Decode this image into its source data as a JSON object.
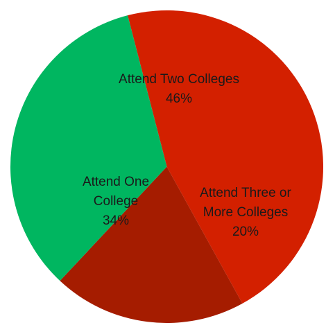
{
  "chart_data": {
    "type": "pie",
    "slices": [
      {
        "label_lines": [
          "Attend Two Colleges"
        ],
        "value": 46,
        "value_label": "46%",
        "color": "#d32000"
      },
      {
        "label_lines": [
          "Attend Three or",
          "More Colleges"
        ],
        "value": 20,
        "value_label": "20%",
        "color": "#a51c00"
      },
      {
        "label_lines": [
          "Attend One",
          "College"
        ],
        "value": 34,
        "value_label": "34%",
        "color": "#00b660"
      }
    ]
  }
}
